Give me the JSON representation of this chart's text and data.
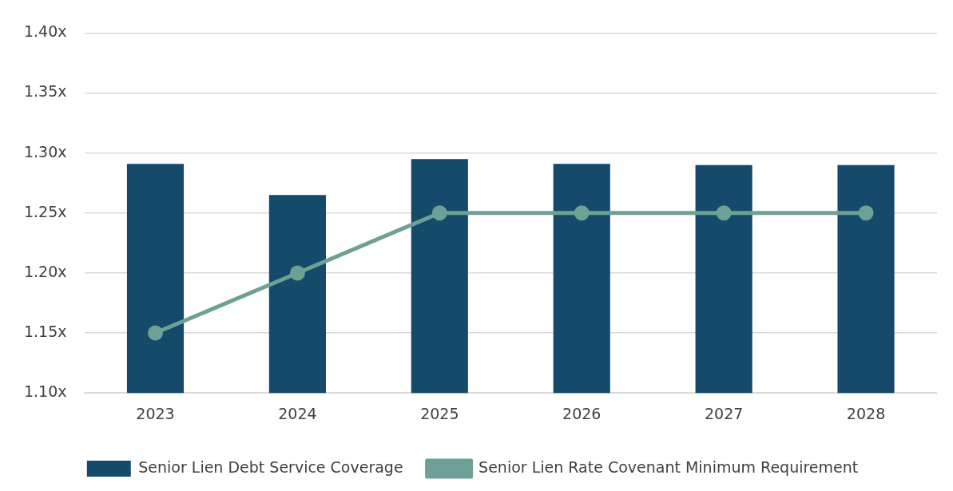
{
  "chart_data": {
    "type": "bar",
    "categories": [
      "2023",
      "2024",
      "2025",
      "2026",
      "2027",
      "2028"
    ],
    "series": [
      {
        "name": "Senior Lien Debt Service Coverage",
        "color": "#154a6b",
        "values": [
          1.291,
          1.265,
          1.295,
          1.291,
          1.29,
          1.29
        ]
      },
      {
        "name": "Senior Lien Rate Covenant Minimum Requirement",
        "type": "line",
        "color": "#6fa095",
        "values": [
          1.15,
          1.2,
          1.25,
          1.25,
          1.25,
          1.25
        ]
      }
    ],
    "ylim": [
      1.1,
      1.4
    ],
    "yticks": [
      {
        "value": 1.1,
        "label": "1.10x"
      },
      {
        "value": 1.15,
        "label": "1.15x"
      },
      {
        "value": 1.2,
        "label": "1.20x"
      },
      {
        "value": 1.25,
        "label": "1.25x"
      },
      {
        "value": 1.3,
        "label": "1.30x"
      },
      {
        "value": 1.35,
        "label": "1.35x"
      },
      {
        "value": 1.4,
        "label": "1.40x"
      }
    ],
    "grid": "y",
    "legend": "bottom",
    "marker": "circle"
  }
}
